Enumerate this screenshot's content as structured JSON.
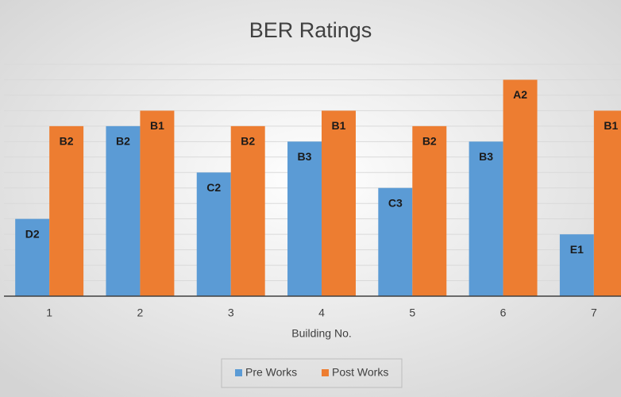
{
  "chart_data": {
    "type": "bar",
    "title": "BER Ratings",
    "x_label": "Building No.",
    "categories": [
      "1",
      "2",
      "3",
      "4",
      "5",
      "6",
      "7"
    ],
    "series": [
      {
        "name": "Pre Works",
        "color": "#5b9bd5",
        "values": [
          5,
          11,
          8,
          10,
          7,
          10,
          4
        ],
        "value_labels": [
          "D2",
          "B2",
          "C2",
          "B3",
          "C3",
          "B3",
          "E1"
        ]
      },
      {
        "name": "Post Works",
        "color": "#ed7d31",
        "values": [
          11,
          12,
          11,
          12,
          11,
          14,
          12
        ],
        "value_labels": [
          "B2",
          "B1",
          "B2",
          "B1",
          "B2",
          "A2",
          "B1"
        ]
      }
    ],
    "ylim": [
      0,
      15
    ],
    "yticks": [
      0,
      1,
      2,
      3,
      4,
      5,
      6,
      7,
      8,
      9,
      10,
      11,
      12,
      13,
      14,
      15
    ],
    "grid": true,
    "legend": "bottom"
  }
}
